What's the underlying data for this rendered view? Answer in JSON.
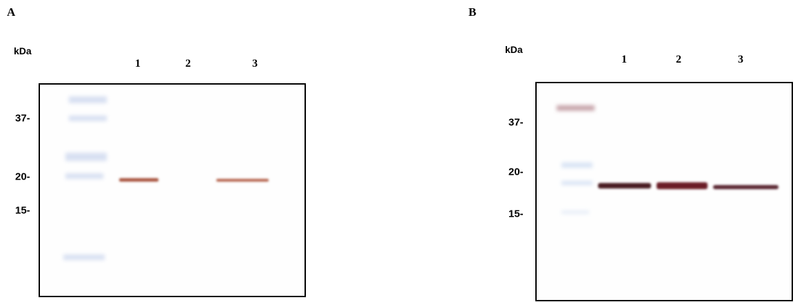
{
  "panels": [
    {
      "label": "A",
      "unit": "kDa",
      "lanes": [
        "1",
        "2",
        "3"
      ],
      "markers": [
        "37-",
        "20-",
        "15-"
      ]
    },
    {
      "label": "B",
      "unit": "kDa",
      "lanes": [
        "1",
        "2",
        "3"
      ],
      "markers": [
        "37-",
        "20-",
        "15-"
      ]
    }
  ]
}
